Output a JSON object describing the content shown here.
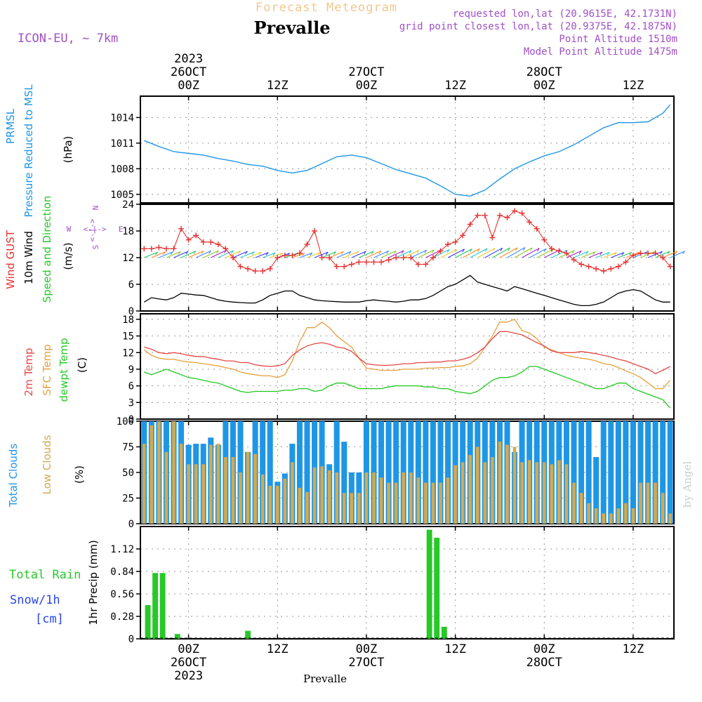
{
  "header": {
    "supertitle": "Forecast Meteogram",
    "title": "Prevalle",
    "model": "ICON-EU, ~ 7km",
    "requested": "requested lon,lat (20.9615E, 42.1731N)",
    "gridpoint": "grid point closest lon,lat (20.9375E, 42.1875N)",
    "altitude": "Point Altitude 1510m",
    "model_altitude": "Model Point Altitude 1475m",
    "footer_place": "Prevalle",
    "watermark": "by Angel"
  },
  "time_axis": {
    "top_labels": [
      {
        "t": 6,
        "lines": [
          "2023",
          "26OCT",
          "00Z"
        ]
      },
      {
        "t": 18,
        "lines": [
          "12Z"
        ]
      },
      {
        "t": 30,
        "lines": [
          "27OCT",
          "00Z"
        ]
      },
      {
        "t": 42,
        "lines": [
          "12Z"
        ]
      },
      {
        "t": 54,
        "lines": [
          "28OCT",
          "00Z"
        ]
      },
      {
        "t": 66,
        "lines": [
          "12Z"
        ]
      }
    ],
    "bottom_labels": [
      {
        "t": 6,
        "lines": [
          "00Z",
          "26OCT",
          "2023"
        ]
      },
      {
        "t": 18,
        "lines": [
          "12Z"
        ]
      },
      {
        "t": 30,
        "lines": [
          "00Z",
          "27OCT"
        ]
      },
      {
        "t": 42,
        "lines": [
          "12Z"
        ]
      },
      {
        "t": 54,
        "lines": [
          "00Z",
          "28OCT"
        ]
      },
      {
        "t": 66,
        "lines": [
          "12Z"
        ]
      }
    ]
  },
  "labels": {
    "pressure": {
      "name": "PRMSL",
      "desc": "Pressure Reduced to MSL",
      "unit": "(hPa)"
    },
    "wind": {
      "gust": "Wind GUST",
      "wind10": "10m Wind",
      "dir": "Speed and Direction",
      "unit": "(m/s)",
      "compass_n": "N",
      "compass_s": "S",
      "compass_w": "W",
      "compass_e": "E",
      "arrow": "<-|->"
    },
    "temp": {
      "t2m": "2m Temp",
      "sfc": "SFC Temp",
      "dew": "dewpt Temp",
      "unit": "(C)"
    },
    "clouds": {
      "total": "Total Clouds",
      "low": "Low Clouds",
      "unit": "(%)"
    },
    "rain": {
      "total": "Total Rain",
      "snow": "Snow/1h",
      "cm": "[cm]",
      "axis": "1hr Precip (mm)"
    }
  },
  "colors": {
    "pressure": "#1e96e6",
    "gust": "#e63232",
    "wind10": "#000000",
    "t2m": "#e64646",
    "sfc": "#e6a03c",
    "dew": "#1ec81e",
    "total_clouds": "#1e96e6",
    "low_clouds": "#d2aa50",
    "rain": "#28c828",
    "snow": "#2846e6",
    "label_purple": "#a050c8"
  },
  "chart_data": [
    {
      "type": "line",
      "title": "Pressure Reduced to MSL",
      "ylabel": "(hPa)",
      "ylim": [
        1004,
        1016.5
      ],
      "yticks": [
        1005,
        1008,
        1011,
        1014
      ],
      "x": [
        0,
        2,
        4,
        6,
        8,
        10,
        12,
        14,
        16,
        18,
        20,
        22,
        24,
        26,
        28,
        30,
        32,
        34,
        36,
        38,
        40,
        42,
        44,
        46,
        48,
        50,
        52,
        54,
        56,
        58,
        60,
        62,
        64,
        66,
        68,
        70,
        71
      ],
      "series": [
        {
          "name": "PRMSL",
          "values": [
            1011.3,
            1010.6,
            1010.0,
            1009.8,
            1009.6,
            1009.2,
            1008.9,
            1008.5,
            1008.3,
            1007.8,
            1007.5,
            1007.8,
            1008.6,
            1009.4,
            1009.6,
            1009.3,
            1008.6,
            1007.9,
            1007.4,
            1006.9,
            1006.0,
            1005.0,
            1004.8,
            1005.5,
            1006.8,
            1008.0,
            1008.8,
            1009.5,
            1010.0,
            1010.8,
            1011.8,
            1012.8,
            1013.4,
            1013.4,
            1013.5,
            1014.5,
            1015.5
          ]
        }
      ]
    },
    {
      "type": "line",
      "title": "Wind GUST / 10m Wind Speed and Direction",
      "ylabel": "(m/s)",
      "ylim": [
        0,
        24
      ],
      "yticks": [
        0,
        6,
        12,
        18,
        24
      ],
      "x": [
        0,
        1,
        2,
        3,
        4,
        5,
        6,
        7,
        8,
        9,
        10,
        11,
        12,
        13,
        14,
        15,
        16,
        17,
        18,
        19,
        20,
        21,
        22,
        23,
        24,
        25,
        26,
        27,
        28,
        29,
        30,
        31,
        32,
        33,
        34,
        35,
        36,
        37,
        38,
        39,
        40,
        41,
        42,
        43,
        44,
        45,
        46,
        47,
        48,
        49,
        50,
        51,
        52,
        53,
        54,
        55,
        56,
        57,
        58,
        59,
        60,
        61,
        62,
        63,
        64,
        65,
        66,
        67,
        68,
        69,
        70,
        71
      ],
      "series": [
        {
          "name": "Wind GUST",
          "values": [
            14,
            14,
            14.3,
            14,
            14,
            18.5,
            16,
            17,
            15.5,
            15.5,
            15,
            14,
            12,
            10,
            9.5,
            9,
            9,
            9.5,
            12,
            12.5,
            12.5,
            13,
            15,
            18,
            12,
            12,
            10,
            10,
            10.5,
            11,
            11,
            11,
            11,
            11.5,
            12,
            12,
            12,
            10.5,
            10.5,
            12,
            13.5,
            15,
            15.5,
            17,
            19.5,
            21.5,
            21.5,
            16.5,
            21.5,
            21,
            22.5,
            22,
            20,
            18.5,
            16,
            14,
            13.5,
            13,
            11.5,
            10.5,
            10,
            9.5,
            9,
            9.5,
            10,
            11,
            12.5,
            13,
            13,
            13,
            12,
            10
          ]
        },
        {
          "name": "10m Wind",
          "values": [
            2,
            3,
            2.7,
            2.5,
            3,
            4,
            3.8,
            3.6,
            3.5,
            3,
            2.5,
            2.2,
            2,
            1.9,
            1.8,
            1.8,
            2.5,
            3.5,
            4,
            4.5,
            4.5,
            3.5,
            3,
            2.5,
            2.3,
            2.2,
            2.1,
            2,
            2,
            2,
            2.3,
            2.5,
            2.3,
            2.2,
            2,
            2.2,
            2.5,
            2.5,
            2.8,
            3.5,
            4.5,
            5.5,
            6,
            7,
            8,
            6.5,
            6,
            5.5,
            5,
            4.5,
            5.5,
            5,
            4.5,
            4,
            3.5,
            3,
            2.5,
            2,
            1.5,
            1.2,
            1.2,
            1.5,
            2,
            3,
            4,
            4.5,
            4.8,
            4.5,
            3.5,
            2.5,
            2,
            2
          ]
        }
      ],
      "direction_glyph_speed_m_s": [
        5.5,
        5.8,
        6,
        6.2,
        6.5,
        6.8,
        7,
        7.2,
        7.5,
        7.8,
        7.5,
        7,
        6.5,
        6,
        5.5,
        5,
        4.5,
        4.2,
        4,
        3.8,
        4,
        4.5,
        5,
        5.5,
        6,
        6.2,
        6.3,
        6.4,
        6.5,
        6.6,
        6.8,
        7,
        7.2,
        7.4,
        7.6,
        7.8,
        8,
        8.2,
        8.4,
        8.6,
        8.8,
        9,
        9.2,
        9.5,
        9.8,
        10,
        10.2,
        10.4,
        10.6,
        10.8,
        10.5,
        10,
        9.5,
        9,
        8.5,
        8,
        7.5,
        7,
        6.5,
        6,
        5.5,
        5.2,
        5,
        5,
        5.2,
        5.5,
        6,
        6.2,
        6.4,
        6.5,
        6.6,
        6.7
      ]
    },
    {
      "type": "line",
      "title": "2m Temp / SFC Temp / dewpt Temp",
      "ylabel": "(C)",
      "ylim": [
        0,
        19
      ],
      "yticks": [
        0,
        3,
        6,
        9,
        12,
        15,
        18
      ],
      "x": [
        0,
        1,
        2,
        3,
        4,
        5,
        6,
        7,
        8,
        9,
        10,
        11,
        12,
        13,
        14,
        15,
        16,
        17,
        18,
        19,
        20,
        21,
        22,
        23,
        24,
        25,
        26,
        27,
        28,
        29,
        30,
        31,
        32,
        33,
        34,
        35,
        36,
        37,
        38,
        39,
        40,
        41,
        42,
        43,
        44,
        45,
        46,
        47,
        48,
        49,
        50,
        51,
        52,
        53,
        54,
        55,
        56,
        57,
        58,
        59,
        60,
        61,
        62,
        63,
        64,
        65,
        66,
        67,
        68,
        69,
        70,
        71
      ],
      "series": [
        {
          "name": "2m Temp",
          "values": [
            13,
            12.6,
            12,
            11.8,
            12,
            11.8,
            11.5,
            11.3,
            11.3,
            11,
            10.8,
            10.5,
            10.5,
            10.2,
            10.2,
            9.8,
            9.6,
            9.5,
            9.6,
            10,
            11.5,
            12.5,
            13.2,
            13.6,
            13.8,
            13.5,
            13,
            12.8,
            12.2,
            11,
            10,
            9.8,
            9.7,
            9.7,
            9.8,
            10,
            10,
            10.2,
            10.2,
            10.3,
            10.3,
            10.5,
            10.5,
            10.8,
            11.2,
            12,
            13,
            14.5,
            15.8,
            15.8,
            15.5,
            15.2,
            14.5,
            13.8,
            13.2,
            12.3,
            12,
            12,
            12,
            12.2,
            12,
            11.8,
            11.5,
            11.2,
            10.8,
            10.5,
            10,
            9.5,
            9,
            8.2,
            8.8,
            9.5
          ]
        },
        {
          "name": "SFC Temp",
          "values": [
            12.5,
            11.5,
            11,
            10.8,
            10.8,
            10.5,
            10.3,
            10.2,
            10,
            9.8,
            9.6,
            9.3,
            9,
            8.5,
            8.2,
            8,
            7.8,
            7.8,
            7.5,
            8,
            10.5,
            14,
            16.5,
            16.5,
            17.5,
            16.5,
            15,
            14,
            13,
            11,
            9.2,
            9,
            8.8,
            8.8,
            8.8,
            9,
            9,
            9,
            9.2,
            9.2,
            9.3,
            9.3,
            9.5,
            9.6,
            10,
            11,
            13,
            15,
            17.5,
            17.5,
            18,
            16,
            15.5,
            14.5,
            13,
            12.5,
            12,
            11.5,
            11.2,
            11,
            10.8,
            10.5,
            10,
            9.8,
            9.3,
            8.7,
            8.2,
            7.5,
            6.5,
            5.5,
            5.5,
            7
          ]
        },
        {
          "name": "dewpt Temp",
          "values": [
            8.5,
            8,
            8.5,
            9,
            8.5,
            8,
            7.5,
            7.3,
            7,
            6.7,
            6.5,
            6,
            5.5,
            5,
            4.8,
            5,
            5,
            5,
            5,
            5.2,
            5.2,
            5.5,
            5.5,
            5,
            5.2,
            6,
            6.5,
            6.5,
            6,
            5.5,
            5.5,
            5.5,
            5.5,
            5.8,
            6,
            6,
            6,
            6,
            5.8,
            5.8,
            5.5,
            5.5,
            5,
            4.8,
            4.6,
            5,
            6,
            7,
            7.5,
            7.5,
            7.8,
            8.5,
            9.5,
            9.5,
            9,
            8.5,
            8,
            7.5,
            7,
            6.5,
            6,
            5.5,
            5.5,
            6,
            6.5,
            6.5,
            5.5,
            5,
            4.5,
            4,
            3.5,
            2
          ]
        }
      ]
    },
    {
      "type": "bar",
      "title": "Total Clouds / Low Clouds",
      "ylabel": "(%)",
      "ylim": [
        0,
        100
      ],
      "yticks": [
        0,
        25,
        50,
        75,
        100
      ],
      "x": [
        0,
        1,
        2,
        3,
        4,
        5,
        6,
        7,
        8,
        9,
        10,
        11,
        12,
        13,
        14,
        15,
        16,
        17,
        18,
        19,
        20,
        21,
        22,
        23,
        24,
        25,
        26,
        27,
        28,
        29,
        30,
        31,
        32,
        33,
        34,
        35,
        36,
        37,
        38,
        39,
        40,
        41,
        42,
        43,
        44,
        45,
        46,
        47,
        48,
        49,
        50,
        51,
        52,
        53,
        54,
        55,
        56,
        57,
        58,
        59,
        60,
        61,
        62,
        63,
        64,
        65,
        66,
        67,
        68,
        69,
        70,
        71
      ],
      "series": [
        {
          "name": "Total Clouds",
          "values": [
            100,
            100,
            100,
            100,
            100,
            100,
            77,
            78,
            78,
            84,
            77,
            100,
            100,
            100,
            70,
            100,
            100,
            100,
            41,
            49,
            78,
            100,
            100,
            100,
            100,
            58,
            100,
            80,
            50,
            50,
            100,
            100,
            100,
            100,
            100,
            100,
            100,
            100,
            100,
            100,
            100,
            100,
            100,
            100,
            100,
            100,
            100,
            100,
            100,
            100,
            70,
            100,
            100,
            100,
            100,
            100,
            100,
            100,
            100,
            100,
            100,
            65,
            100,
            100,
            100,
            100,
            100,
            100,
            100,
            100,
            100,
            100
          ]
        },
        {
          "name": "Low Clouds",
          "values": [
            78,
            96,
            100,
            70,
            100,
            78,
            58,
            58,
            58,
            77,
            78,
            65,
            65,
            50,
            70,
            68,
            48,
            37,
            37,
            44,
            60,
            35,
            31,
            55,
            56,
            52,
            50,
            30,
            30,
            30,
            50,
            50,
            45,
            40,
            40,
            50,
            50,
            45,
            40,
            40,
            40,
            45,
            57,
            60,
            67,
            75,
            60,
            65,
            80,
            77,
            75,
            60,
            62,
            60,
            60,
            58,
            62,
            58,
            40,
            30,
            20,
            15,
            10,
            10,
            15,
            20,
            15,
            40,
            40,
            40,
            30,
            10
          ]
        }
      ],
      "low_cloud_ymax": 100
    },
    {
      "type": "bar",
      "title": "1hr Precip",
      "ylabel": "1hr Precip (mm)",
      "ylim": [
        0,
        1.4
      ],
      "yticks": [
        0,
        0.28,
        0.56,
        0.84,
        1.12
      ],
      "ytick_labels": [
        "0",
        "0.28",
        "0.56",
        "0.84",
        "1.12"
      ],
      "x": [
        0.5,
        1.5,
        2.5,
        4.5,
        14,
        38.5,
        39.5,
        40.5
      ],
      "series": [
        {
          "name": "Total Rain",
          "values": [
            0.42,
            0.82,
            0.82,
            0.06,
            0.1,
            1.36,
            1.26,
            0.15
          ]
        }
      ]
    }
  ]
}
